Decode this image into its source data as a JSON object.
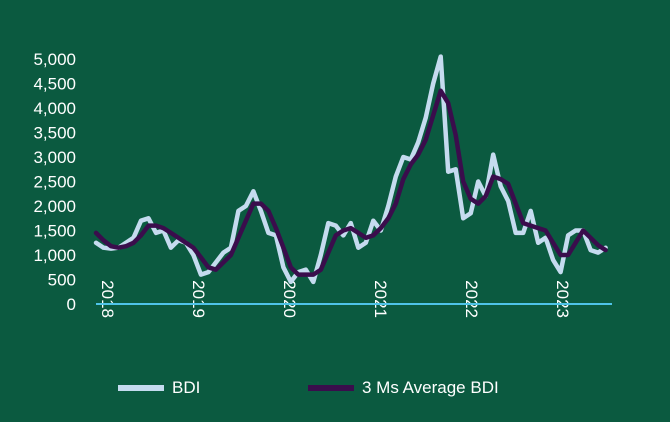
{
  "chart_data": {
    "type": "line",
    "title": "",
    "xlabel": "",
    "ylabel": "",
    "ylim": [
      0,
      5000
    ],
    "yticks": [
      "0",
      "500",
      "1,000",
      "1,500",
      "2,000",
      "2,500",
      "3,000",
      "3,500",
      "4,000",
      "4,500",
      "5,000"
    ],
    "ytick_values": [
      0,
      500,
      1000,
      1500,
      2000,
      2500,
      3000,
      3500,
      4000,
      4500,
      5000
    ],
    "xticks": [
      "2018",
      "2019",
      "2020",
      "2021",
      "2022",
      "2023"
    ],
    "x_start_year": 2018,
    "x_end": 2023.6,
    "legend_position": "bottom",
    "series": [
      {
        "name": "BDI",
        "color": "#c5dbef",
        "values": [
          1250,
          1150,
          1130,
          1150,
          1250,
          1350,
          1700,
          1750,
          1450,
          1500,
          1150,
          1300,
          1250,
          1000,
          600,
          650,
          850,
          1050,
          1150,
          1900,
          2000,
          2300,
          1900,
          1450,
          1400,
          750,
          450,
          650,
          700,
          450,
          1000,
          1650,
          1600,
          1400,
          1650,
          1150,
          1250,
          1700,
          1500,
          2000,
          2600,
          3000,
          2950,
          3300,
          3800,
          4500,
          5050,
          2700,
          2750,
          1750,
          1850,
          2500,
          2200,
          3050,
          2400,
          2100,
          1450,
          1450,
          1900,
          1250,
          1350,
          900,
          650,
          1400,
          1500,
          1500,
          1100,
          1050,
          1150
        ]
      },
      {
        "name": "3 Ms Average BDI",
        "color": "#3a0d4c",
        "values": [
          1450,
          1300,
          1180,
          1150,
          1180,
          1250,
          1400,
          1600,
          1600,
          1550,
          1450,
          1350,
          1250,
          1150,
          950,
          750,
          700,
          850,
          1000,
          1350,
          1700,
          2050,
          2050,
          1900,
          1550,
          1150,
          750,
          600,
          600,
          600,
          700,
          1050,
          1400,
          1500,
          1550,
          1450,
          1350,
          1400,
          1550,
          1750,
          2050,
          2550,
          2850,
          3050,
          3350,
          3850,
          4350,
          4100,
          3450,
          2500,
          2150,
          2050,
          2200,
          2600,
          2550,
          2450,
          2050,
          1650,
          1600,
          1550,
          1500,
          1250,
          1000,
          1000,
          1250,
          1500,
          1350,
          1200,
          1100
        ]
      }
    ]
  }
}
